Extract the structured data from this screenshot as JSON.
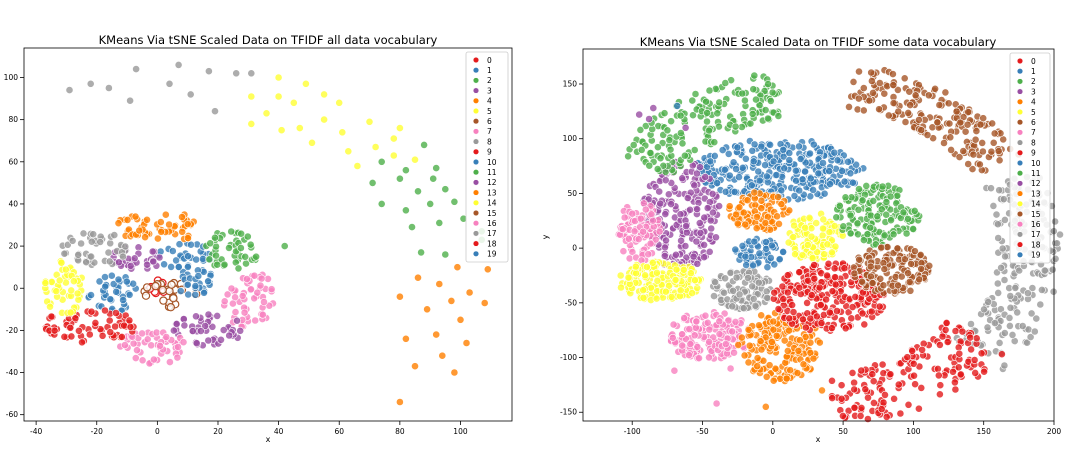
{
  "chart_data": [
    {
      "type": "scatter",
      "title": "KMeans Via tSNE Scaled Data on TFIDF all data vocabulary",
      "xlabel": "x",
      "ylabel": "",
      "xlim": [
        -44,
        117
      ],
      "ylim": [
        -63,
        114
      ],
      "xticks": [
        -40,
        -20,
        0,
        20,
        40,
        60,
        80,
        100
      ],
      "yticks": [
        -60,
        -40,
        -20,
        0,
        20,
        40,
        60,
        80,
        100
      ],
      "grid": false,
      "legend": "upper right",
      "legend_labels": [
        "0",
        "1",
        "2",
        "3",
        "4",
        "5",
        "6",
        "7",
        "8",
        "9",
        "10",
        "11",
        "12",
        "13",
        "14",
        "15",
        "16",
        "17",
        "18",
        "19"
      ],
      "clusters": [
        {
          "label": "0",
          "cx": 0,
          "cy": 0,
          "rx": 4,
          "ry": 4,
          "n": 8,
          "style": "ring"
        },
        {
          "label": "6",
          "cx": 4,
          "cy": -3,
          "rx": 10,
          "ry": 7,
          "n": 22,
          "style": "ring"
        },
        {
          "label": "1",
          "cx": -15,
          "cy": -2,
          "rx": 8,
          "ry": 10,
          "n": 40
        },
        {
          "label": "10",
          "cx": 9,
          "cy": 14,
          "rx": 9,
          "ry": 8,
          "n": 32
        },
        {
          "label": "19",
          "cx": 12,
          "cy": 4,
          "rx": 6,
          "ry": 8,
          "n": 26
        },
        {
          "label": "3",
          "cx": -7,
          "cy": 14,
          "rx": 8,
          "ry": 7,
          "n": 32
        },
        {
          "label": "17",
          "cx": -21,
          "cy": 19,
          "rx": 11,
          "ry": 9,
          "n": 44
        },
        {
          "label": "13",
          "cx": 1,
          "cy": 29,
          "rx": 15,
          "ry": 7,
          "n": 55
        },
        {
          "label": "2",
          "cx": 24,
          "cy": 18,
          "rx": 10,
          "ry": 9,
          "n": 45
        },
        {
          "label": "7",
          "cx": 30,
          "cy": -5,
          "rx": 9,
          "ry": 14,
          "n": 55
        },
        {
          "label": "12",
          "cx": 17,
          "cy": -20,
          "rx": 12,
          "ry": 8,
          "n": 48
        },
        {
          "label": "16",
          "cx": -1,
          "cy": -28,
          "rx": 12,
          "ry": 8,
          "n": 50
        },
        {
          "label": "18",
          "cx": -22,
          "cy": -18,
          "rx": 16,
          "ry": 8,
          "n": 70
        },
        {
          "label": "14",
          "cx": -31,
          "cy": 0,
          "rx": 7,
          "ry": 13,
          "n": 50
        }
      ],
      "outliers": [
        {
          "label": "11",
          "points": [
            [
              42,
              20
            ]
          ]
        },
        {
          "label": "8",
          "points": [
            [
              -29,
              94
            ],
            [
              -9,
              89
            ],
            [
              -16,
              95
            ],
            [
              -22,
              97
            ],
            [
              -7,
              104
            ],
            [
              4,
              97
            ],
            [
              11,
              92
            ],
            [
              7,
              106
            ],
            [
              17,
              103
            ],
            [
              26,
              102
            ],
            [
              31,
              102
            ],
            [
              19,
              84
            ]
          ]
        },
        {
          "label": "5",
          "points": [
            [
              31,
              78
            ],
            [
              36,
              83
            ],
            [
              31,
              91
            ],
            [
              40,
              100
            ],
            [
              40,
              91
            ],
            [
              45,
              88
            ],
            [
              49,
              97
            ],
            [
              60,
              88
            ],
            [
              41,
              75
            ],
            [
              47,
              76
            ],
            [
              55,
              80
            ],
            [
              51,
              69
            ],
            [
              61,
              74
            ],
            [
              63,
              65
            ],
            [
              66,
              58
            ],
            [
              70,
              79
            ],
            [
              78,
              71
            ],
            [
              72,
              67
            ],
            [
              80,
              76
            ],
            [
              78,
              63
            ],
            [
              85,
              61
            ],
            [
              55,
              92
            ]
          ]
        },
        {
          "label": "2",
          "points": [
            [
              74,
              60
            ],
            [
              82,
              56
            ],
            [
              88,
              68
            ],
            [
              92,
              57
            ],
            [
              71,
              50
            ],
            [
              80,
              52
            ],
            [
              91,
              52
            ],
            [
              86,
              46
            ],
            [
              95,
              47
            ],
            [
              74,
              40
            ],
            [
              82,
              37
            ],
            [
              90,
              40
            ],
            [
              98,
              41
            ],
            [
              84,
              29
            ],
            [
              93,
              31
            ],
            [
              101,
              33
            ],
            [
              107,
              27
            ],
            [
              87,
              17
            ],
            [
              95,
              16
            ],
            [
              107,
              23
            ]
          ]
        },
        {
          "label": "13",
          "points": [
            [
              99,
              10
            ],
            [
              109,
              9
            ],
            [
              86,
              5
            ],
            [
              93,
              2
            ],
            [
              103,
              -2
            ],
            [
              80,
              -4
            ],
            [
              89,
              -10
            ],
            [
              97,
              -6
            ],
            [
              108,
              -7
            ],
            [
              100,
              -15
            ],
            [
              82,
              -24
            ],
            [
              92,
              -22
            ],
            [
              102,
              -26
            ],
            [
              94,
              -32
            ],
            [
              85,
              -37
            ],
            [
              98,
              -40
            ],
            [
              80,
              -54
            ]
          ]
        }
      ]
    },
    {
      "type": "scatter",
      "title": "KMeans Via tSNE Scaled Data on TFIDF some data vocabulary",
      "xlabel": "x",
      "ylabel": "y",
      "xlim": [
        -135,
        200
      ],
      "ylim": [
        -158,
        182
      ],
      "xticks": [
        -100,
        -50,
        0,
        50,
        100,
        150,
        200
      ],
      "yticks": [
        -150,
        -100,
        -50,
        0,
        50,
        100,
        150
      ],
      "grid": false,
      "legend": "upper right",
      "legend_labels": [
        "0",
        "1",
        "2",
        "3",
        "4",
        "5",
        "6",
        "7",
        "8",
        "9",
        "10",
        "11",
        "12",
        "13",
        "14",
        "15",
        "16",
        "17",
        "18",
        "19"
      ],
      "clusters": [
        {
          "label": "10",
          "cx": 5,
          "cy": 72,
          "rx": 60,
          "ry": 28,
          "n": 320
        },
        {
          "label": "12",
          "cx": -65,
          "cy": 30,
          "rx": 28,
          "ry": 50,
          "n": 220
        },
        {
          "label": "7",
          "cx": -95,
          "cy": 15,
          "rx": 15,
          "ry": 28,
          "n": 80
        },
        {
          "label": "14",
          "cx": -80,
          "cy": -30,
          "rx": 30,
          "ry": 18,
          "n": 170
        },
        {
          "label": "16",
          "cx": -45,
          "cy": -80,
          "rx": 30,
          "ry": 22,
          "n": 150
        },
        {
          "label": "13",
          "cx": 5,
          "cy": -90,
          "rx": 30,
          "ry": 32,
          "n": 180
        },
        {
          "label": "17",
          "cx": -22,
          "cy": -38,
          "rx": 23,
          "ry": 18,
          "n": 100
        },
        {
          "label": "4",
          "cx": -10,
          "cy": 33,
          "rx": 22,
          "ry": 18,
          "n": 90
        },
        {
          "label": "19",
          "cx": -10,
          "cy": -5,
          "rx": 18,
          "ry": 14,
          "n": 55
        },
        {
          "label": "5",
          "cx": 30,
          "cy": 10,
          "rx": 20,
          "ry": 22,
          "n": 110
        },
        {
          "label": "11",
          "cx": 75,
          "cy": 30,
          "rx": 30,
          "ry": 28,
          "n": 160
        },
        {
          "label": "9",
          "cx": 40,
          "cy": -45,
          "rx": 40,
          "ry": 32,
          "n": 260
        },
        {
          "label": "15",
          "cx": 85,
          "cy": -20,
          "rx": 28,
          "ry": 22,
          "n": 150
        }
      ],
      "arcs": [
        {
          "label": "2",
          "t0": 100,
          "t1": 148,
          "r0": 120,
          "r1": 165,
          "n": 180
        },
        {
          "label": "15",
          "t0": 30,
          "t1": 80,
          "r0": 130,
          "r1": 170,
          "n": 190
        },
        {
          "label": "17",
          "t0": -40,
          "t1": 25,
          "r0": 130,
          "r1": 175,
          "n": 200
        },
        {
          "label": "18",
          "t0": -85,
          "t1": -35,
          "r0": 115,
          "r1": 165,
          "n": 160
        }
      ],
      "outliers": [
        {
          "label": "3",
          "points": [
            [
              -95,
              122
            ],
            [
              -85,
              128
            ],
            [
              -88,
              118
            ],
            [
              -62,
              110
            ]
          ]
        },
        {
          "label": "1",
          "points": [
            [
              -68,
              130
            ]
          ]
        },
        {
          "label": "13",
          "points": [
            [
              -5,
              -145
            ],
            [
              35,
              -130
            ]
          ]
        },
        {
          "label": "7",
          "points": [
            [
              -70,
              -112
            ],
            [
              -40,
              -142
            ],
            [
              -30,
              -110
            ]
          ]
        }
      ]
    }
  ],
  "colors": {
    "palette": [
      "#e41a1c",
      "#377eb8",
      "#4daf4a",
      "#984ea3",
      "#ff7f00",
      "#ffff33",
      "#a65628",
      "#f781bf",
      "#999999",
      "#e41a1c",
      "#377eb8",
      "#4daf4a",
      "#984ea3",
      "#ff7f00",
      "#ffff33",
      "#a65628",
      "#f781bf",
      "#999999",
      "#e41a1c",
      "#377eb8"
    ],
    "axis": "#000000",
    "legend_border": "#cccccc",
    "point_edge": "#ffffff"
  }
}
